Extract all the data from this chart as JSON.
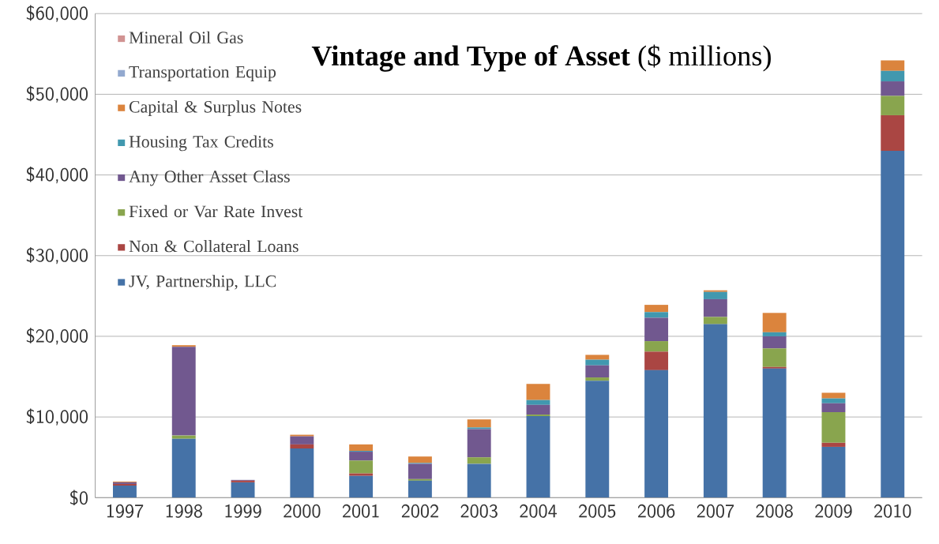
{
  "chart_data": {
    "type": "bar",
    "stacked": true,
    "title": "**Vintage and Type of Asset** ($ millions)",
    "categories": [
      "1997",
      "1998",
      "1999",
      "2000",
      "2001",
      "2002",
      "2003",
      "2004",
      "2005",
      "2006",
      "2007",
      "2008",
      "2009",
      "2010"
    ],
    "series": [
      {
        "name": "JV, Partnership, LLC",
        "color": "#4572a7",
        "values": [
          1500,
          7300,
          1900,
          6100,
          2700,
          2100,
          4200,
          10100,
          14500,
          15800,
          21500,
          16000,
          6300,
          43000
        ]
      },
      {
        "name": "Non & Collateral Loans",
        "color": "#aa4643",
        "values": [
          200,
          0,
          200,
          500,
          300,
          0,
          0,
          0,
          0,
          2300,
          0,
          200,
          500,
          4400
        ]
      },
      {
        "name": "Fixed or Var Rate Invest",
        "color": "#89a54e",
        "values": [
          0,
          400,
          0,
          0,
          1600,
          200,
          800,
          200,
          400,
          1300,
          900,
          2300,
          3800,
          2400
        ]
      },
      {
        "name": "Any Other Asset Class",
        "color": "#71588f",
        "values": [
          200,
          11000,
          100,
          1000,
          1100,
          1900,
          3500,
          1200,
          1500,
          2900,
          2200,
          1500,
          1100,
          1800
        ]
      },
      {
        "name": "Housing Tax Credits",
        "color": "#4198af",
        "values": [
          0,
          0,
          0,
          0,
          100,
          100,
          200,
          600,
          700,
          700,
          900,
          500,
          600,
          1300
        ]
      },
      {
        "name": "Capital & Surplus Notes",
        "color": "#db843d",
        "values": [
          100,
          200,
          0,
          200,
          800,
          800,
          1000,
          2000,
          600,
          900,
          200,
          2400,
          700,
          1300
        ]
      },
      {
        "name": "Transportation Equip",
        "color": "#93a9cf",
        "values": [
          0,
          0,
          0,
          0,
          0,
          0,
          0,
          0,
          0,
          0,
          0,
          0,
          0,
          0
        ]
      },
      {
        "name": "Mineral Oil Gas",
        "color": "#d19392",
        "values": [
          0,
          0,
          0,
          0,
          0,
          0,
          0,
          0,
          0,
          0,
          0,
          0,
          0,
          0
        ]
      }
    ],
    "ylim": [
      0,
      60000
    ],
    "yticks": [
      {
        "value": 0,
        "label": "$0"
      },
      {
        "value": 10000,
        "label": "$10,000"
      },
      {
        "value": 20000,
        "label": "$20,000"
      },
      {
        "value": 30000,
        "label": "$30,000"
      },
      {
        "value": 40000,
        "label": "$40,000"
      },
      {
        "value": 50000,
        "label": "$50,000"
      },
      {
        "value": 60000,
        "label": "$60,000"
      }
    ],
    "grid": "y",
    "legend": "top left"
  }
}
